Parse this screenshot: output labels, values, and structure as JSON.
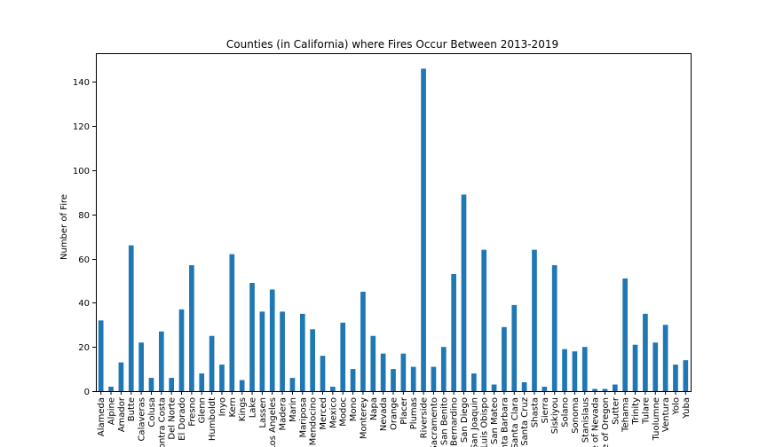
{
  "chart_data": {
    "type": "bar",
    "title": "Counties (in California) where Fires Occur Between 2013-2019",
    "xlabel": "",
    "ylabel": "Number of Fire",
    "ylim": [
      0,
      153
    ],
    "yticks": [
      0,
      20,
      40,
      60,
      80,
      100,
      120,
      140
    ],
    "bar_color": "#1f77b4",
    "categories": [
      "Alameda",
      "Alpine",
      "Amador",
      "Butte",
      "Calaveras",
      "Colusa",
      "Contra Costa",
      "Del Norte",
      "El Dorado",
      "Fresno",
      "Glenn",
      "Humboldt",
      "Inyo",
      "Kern",
      "Kings",
      "Lake",
      "Lassen",
      "Los Angeles",
      "Madera",
      "Marin",
      "Mariposa",
      "Mendocino",
      "Merced",
      "Mexico",
      "Modoc",
      "Mono",
      "Monterey",
      "Napa",
      "Nevada",
      "Orange",
      "Placer",
      "Plumas",
      "Riverside",
      "Sacramento",
      "San Benito",
      "San Bernardino",
      "San Diego",
      "San Joaquin",
      "San Luis Obispo",
      "San Mateo",
      "Santa Barbara",
      "Santa Clara",
      "Santa Cruz",
      "Shasta",
      "Sierra",
      "Siskiyou",
      "Solano",
      "Sonoma",
      "Stanislaus",
      "State of Nevada",
      "State of Oregon",
      "Sutter",
      "Tehama",
      "Trinity",
      "Tulare",
      "Tuolumne",
      "Ventura",
      "Yolo",
      "Yuba"
    ],
    "values": [
      32,
      2,
      13,
      66,
      22,
      6,
      27,
      6,
      37,
      57,
      8,
      25,
      12,
      62,
      5,
      49,
      36,
      46,
      36,
      6,
      35,
      28,
      16,
      2,
      31,
      10,
      45,
      25,
      17,
      10,
      17,
      11,
      146,
      11,
      20,
      53,
      89,
      8,
      64,
      3,
      29,
      39,
      4,
      64,
      2,
      57,
      19,
      18,
      20,
      1,
      1,
      3,
      51,
      21,
      35,
      22,
      30,
      12,
      14
    ]
  }
}
